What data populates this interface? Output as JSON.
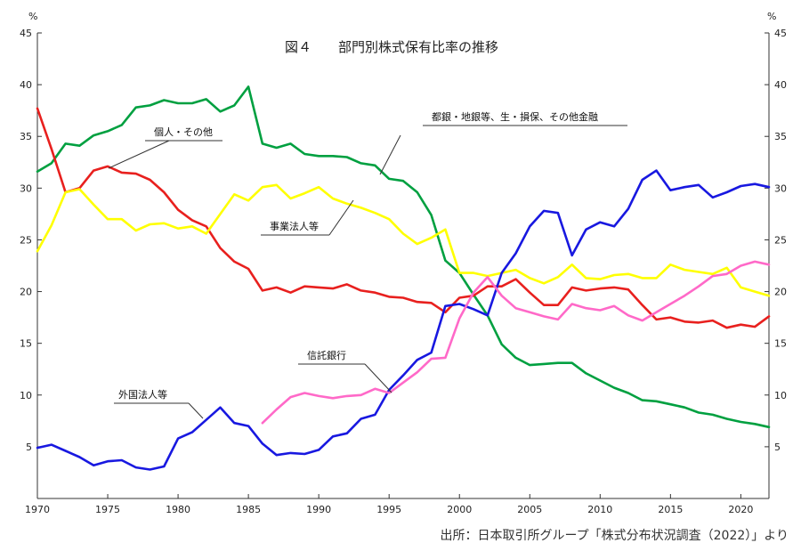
{
  "chart_data": {
    "type": "line",
    "title": "図４　　部門別株式保有比率の推移",
    "y_unit_label": "%",
    "ylim": [
      0,
      45
    ],
    "y_ticks": [
      5,
      10,
      15,
      20,
      25,
      30,
      35,
      40,
      45
    ],
    "xlim": [
      1970,
      2022
    ],
    "x_ticks": [
      1970,
      1975,
      1980,
      1985,
      1990,
      1995,
      2000,
      2005,
      2010,
      2015,
      2020
    ],
    "grid": false,
    "series": [
      {
        "name": "都銀・地銀等、生・損保、その他金融",
        "color": "#00a040",
        "x": [
          1970,
          1971,
          1972,
          1973,
          1974,
          1975,
          1976,
          1977,
          1978,
          1979,
          1980,
          1981,
          1982,
          1983,
          1984,
          1985,
          1986,
          1987,
          1988,
          1989,
          1990,
          1991,
          1992,
          1993,
          1994,
          1995,
          1996,
          1997,
          1998,
          1999,
          2000,
          2001,
          2002,
          2003,
          2004,
          2005,
          2006,
          2007,
          2008,
          2009,
          2010,
          2011,
          2012,
          2013,
          2014,
          2015,
          2016,
          2017,
          2018,
          2019,
          2020,
          2021,
          2022
        ],
        "values": [
          31.6,
          32.4,
          34.3,
          34.1,
          35.1,
          35.5,
          36.1,
          37.8,
          38.0,
          38.5,
          38.2,
          38.2,
          38.6,
          37.4,
          38.0,
          39.8,
          34.3,
          33.9,
          34.3,
          33.3,
          33.1,
          33.1,
          33.0,
          32.4,
          32.2,
          30.9,
          30.7,
          29.6,
          27.4,
          23.0,
          21.8,
          19.7,
          17.7,
          14.9,
          13.6,
          12.9,
          13.0,
          13.1,
          13.1,
          12.1,
          11.4,
          10.7,
          10.2,
          9.5,
          9.4,
          9.1,
          8.8,
          8.3,
          8.1,
          7.7,
          7.4,
          7.2,
          6.9
        ]
      },
      {
        "name": "個人・その他",
        "color": "#e8201e",
        "x": [
          1970,
          1971,
          1972,
          1973,
          1974,
          1975,
          1976,
          1977,
          1978,
          1979,
          1980,
          1981,
          1982,
          1983,
          1984,
          1985,
          1986,
          1987,
          1988,
          1989,
          1990,
          1991,
          1992,
          1993,
          1994,
          1995,
          1996,
          1997,
          1998,
          1999,
          2000,
          2001,
          2002,
          2003,
          2004,
          2005,
          2006,
          2007,
          2008,
          2009,
          2010,
          2011,
          2012,
          2013,
          2014,
          2015,
          2016,
          2017,
          2018,
          2019,
          2020,
          2021,
          2022
        ],
        "values": [
          37.7,
          33.8,
          29.6,
          30.0,
          31.7,
          32.1,
          31.5,
          31.4,
          30.8,
          29.6,
          27.9,
          26.9,
          26.3,
          24.2,
          22.9,
          22.2,
          20.1,
          20.4,
          19.9,
          20.5,
          20.4,
          20.3,
          20.7,
          20.1,
          19.9,
          19.5,
          19.4,
          19.0,
          18.9,
          18.0,
          19.4,
          19.6,
          20.5,
          20.5,
          21.2,
          19.9,
          18.7,
          18.7,
          20.4,
          20.1,
          20.3,
          20.4,
          20.2,
          18.7,
          17.3,
          17.5,
          17.1,
          17.0,
          17.2,
          16.5,
          16.8,
          16.6,
          17.6
        ]
      },
      {
        "name": "事業法人等",
        "color": "#ffff00",
        "x": [
          1970,
          1971,
          1972,
          1973,
          1974,
          1975,
          1976,
          1977,
          1978,
          1979,
          1980,
          1981,
          1982,
          1983,
          1984,
          1985,
          1986,
          1987,
          1988,
          1989,
          1990,
          1991,
          1992,
          1993,
          1994,
          1995,
          1996,
          1997,
          1998,
          1999,
          2000,
          2001,
          2002,
          2003,
          2004,
          2005,
          2006,
          2007,
          2008,
          2009,
          2010,
          2011,
          2012,
          2013,
          2014,
          2015,
          2016,
          2017,
          2018,
          2019,
          2020,
          2021,
          2022
        ],
        "values": [
          23.9,
          26.4,
          29.6,
          29.9,
          28.4,
          27.0,
          27.0,
          25.9,
          26.5,
          26.6,
          26.1,
          26.3,
          25.6,
          27.5,
          29.4,
          28.8,
          30.1,
          30.3,
          29.0,
          29.5,
          30.1,
          29.0,
          28.5,
          28.1,
          27.6,
          27.0,
          25.6,
          24.6,
          25.2,
          26.0,
          21.8,
          21.8,
          21.5,
          21.8,
          22.1,
          21.3,
          20.8,
          21.4,
          22.6,
          21.3,
          21.2,
          21.6,
          21.7,
          21.3,
          21.3,
          22.6,
          22.1,
          21.9,
          21.7,
          22.3,
          20.4,
          20.0,
          19.6
        ]
      },
      {
        "name": "外国法人等",
        "color": "#1818e0",
        "x": [
          1970,
          1971,
          1972,
          1973,
          1974,
          1975,
          1976,
          1977,
          1978,
          1979,
          1980,
          1981,
          1982,
          1983,
          1984,
          1985,
          1986,
          1987,
          1988,
          1989,
          1990,
          1991,
          1992,
          1993,
          1994,
          1995,
          1996,
          1997,
          1998,
          1999,
          2000,
          2001,
          2002,
          2003,
          2004,
          2005,
          2006,
          2007,
          2008,
          2009,
          2010,
          2011,
          2012,
          2013,
          2014,
          2015,
          2016,
          2017,
          2018,
          2019,
          2020,
          2021,
          2022
        ],
        "values": [
          4.9,
          5.2,
          4.6,
          4.0,
          3.2,
          3.6,
          3.7,
          3.0,
          2.8,
          3.1,
          5.8,
          6.4,
          7.6,
          8.8,
          7.3,
          7.0,
          5.3,
          4.2,
          4.4,
          4.3,
          4.7,
          6.0,
          6.3,
          7.7,
          8.1,
          10.5,
          11.9,
          13.4,
          14.1,
          18.6,
          18.8,
          18.3,
          17.7,
          21.8,
          23.7,
          26.3,
          27.8,
          27.6,
          23.5,
          26.0,
          26.7,
          26.3,
          28.0,
          30.8,
          31.7,
          29.8,
          30.1,
          30.3,
          29.1,
          29.6,
          30.2,
          30.4,
          30.1
        ]
      },
      {
        "name": "信託銀行",
        "color": "#ff69c8",
        "x": [
          1986,
          1987,
          1988,
          1989,
          1990,
          1991,
          1992,
          1993,
          1994,
          1995,
          1996,
          1997,
          1998,
          1999,
          2000,
          2001,
          2002,
          2003,
          2004,
          2005,
          2006,
          2007,
          2008,
          2009,
          2010,
          2011,
          2012,
          2013,
          2014,
          2015,
          2016,
          2017,
          2018,
          2019,
          2020,
          2021,
          2022
        ],
        "values": [
          7.3,
          8.6,
          9.8,
          10.2,
          9.9,
          9.7,
          9.9,
          10.0,
          10.6,
          10.2,
          11.2,
          12.2,
          13.5,
          13.6,
          17.4,
          19.9,
          21.4,
          19.6,
          18.4,
          18.0,
          17.6,
          17.3,
          18.8,
          18.4,
          18.2,
          18.6,
          17.7,
          17.2,
          18.0,
          18.8,
          19.6,
          20.5,
          21.5,
          21.7,
          22.5,
          22.9,
          22.6
        ]
      }
    ],
    "annotations": [
      {
        "label": "都銀・地銀等、生・損保、その他金融",
        "target": "都銀・地銀等、生・損保、その他金融"
      },
      {
        "label": "個人・その他",
        "target": "個人・その他"
      },
      {
        "label": "事業法人等",
        "target": "事業法人等"
      },
      {
        "label": "信託銀行",
        "target": "信託銀行"
      },
      {
        "label": "外国法人等",
        "target": "外国法人等"
      }
    ]
  },
  "source_note": "出所：日本取引所グループ「株式分布状況調査（2022）」より"
}
